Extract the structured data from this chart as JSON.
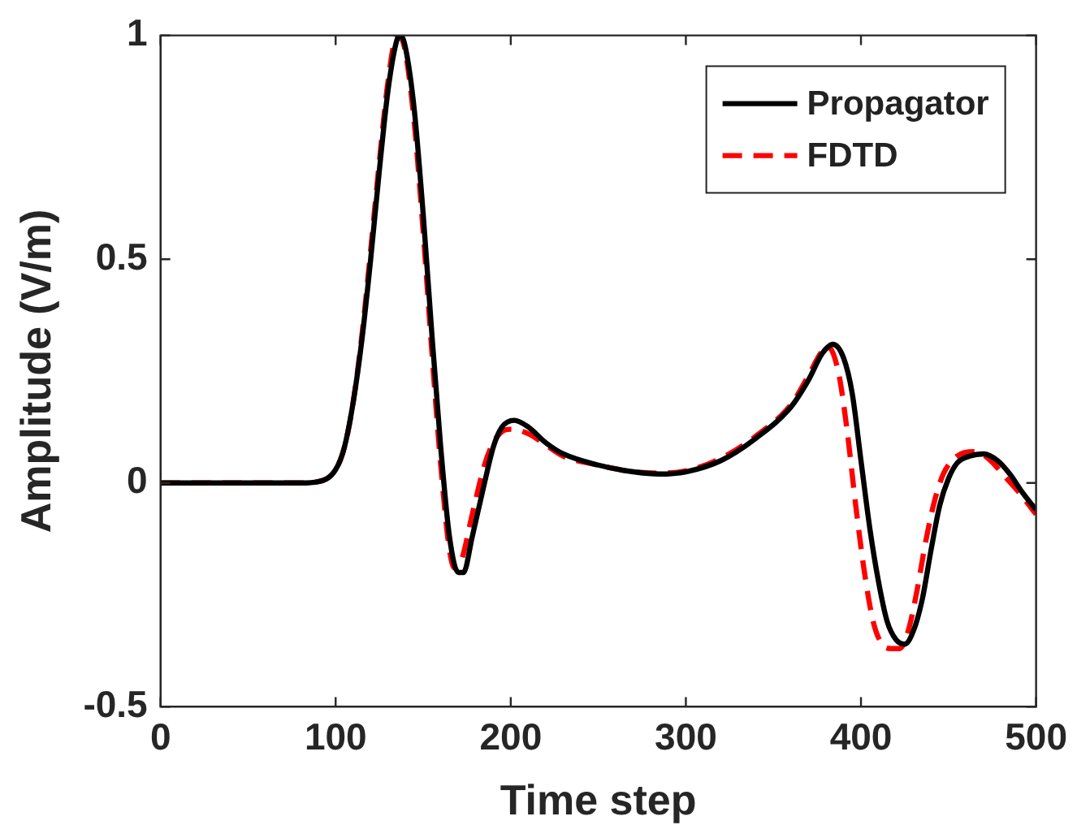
{
  "chart_data": {
    "type": "line",
    "xlabel": "Time step",
    "ylabel": "Amplitude (V/m)",
    "xlim": [
      0,
      500
    ],
    "xticks": [
      0,
      100,
      200,
      300,
      400,
      500
    ],
    "ylim": [
      -0.5,
      1
    ],
    "yticks": [
      -0.5,
      0,
      0.5,
      1
    ],
    "grid": false,
    "legend": "top right",
    "marker": "none",
    "series": [
      {
        "name": "Propagator",
        "color": "#000000",
        "line_style": "solid",
        "x": [
          0,
          80,
          90,
          100,
          105,
          110,
          115,
          120,
          125,
          130,
          135,
          137,
          140,
          145,
          150,
          155,
          160,
          165,
          170,
          173,
          178,
          185,
          190,
          195,
          202,
          210,
          220,
          230,
          250,
          270,
          285,
          300,
          320,
          340,
          360,
          370,
          378,
          384,
          390,
          395,
          400,
          405,
          410,
          415,
          420,
          425,
          430,
          435,
          440,
          445,
          450,
          455,
          462,
          470,
          478,
          485,
          492,
          500
        ],
        "values": [
          0,
          0,
          0.003,
          0.03,
          0.08,
          0.18,
          0.32,
          0.5,
          0.7,
          0.88,
          0.99,
          1,
          0.97,
          0.83,
          0.6,
          0.33,
          0.08,
          -0.12,
          -0.2,
          -0.2,
          -0.12,
          0,
          0.08,
          0.125,
          0.14,
          0.125,
          0.09,
          0.065,
          0.04,
          0.025,
          0.02,
          0.025,
          0.05,
          0.1,
          0.17,
          0.23,
          0.29,
          0.31,
          0.28,
          0.2,
          0.05,
          -0.1,
          -0.22,
          -0.31,
          -0.35,
          -0.36,
          -0.33,
          -0.26,
          -0.15,
          -0.05,
          0.01,
          0.045,
          0.06,
          0.065,
          0.05,
          0.02,
          -0.02,
          -0.06
        ]
      },
      {
        "name": "FDTD",
        "color": "#ff0000",
        "line_style": "dashed",
        "x": [
          0,
          80,
          90,
          100,
          105,
          110,
          115,
          120,
          125,
          130,
          135,
          138,
          140,
          145,
          150,
          155,
          160,
          165,
          168,
          172,
          178,
          185,
          190,
          195,
          200,
          210,
          220,
          230,
          250,
          270,
          285,
          300,
          320,
          340,
          360,
          370,
          377,
          381,
          387,
          392,
          397,
          402,
          407,
          412,
          417,
          422,
          427,
          432,
          437,
          442,
          447,
          452,
          459,
          466,
          474,
          482,
          490,
          500
        ],
        "values": [
          0,
          0,
          0.003,
          0.03,
          0.08,
          0.18,
          0.33,
          0.52,
          0.72,
          0.9,
          1,
          0.99,
          0.96,
          0.8,
          0.56,
          0.29,
          0.04,
          -0.15,
          -0.19,
          -0.17,
          -0.07,
          0.04,
          0.09,
          0.115,
          0.12,
          0.11,
          0.085,
          0.06,
          0.04,
          0.025,
          0.022,
          0.027,
          0.055,
          0.105,
          0.175,
          0.24,
          0.29,
          0.305,
          0.25,
          0.12,
          -0.05,
          -0.2,
          -0.31,
          -0.36,
          -0.37,
          -0.37,
          -0.33,
          -0.24,
          -0.13,
          -0.04,
          0.02,
          0.05,
          0.068,
          0.07,
          0.05,
          0.015,
          -0.02,
          -0.07
        ]
      }
    ]
  }
}
